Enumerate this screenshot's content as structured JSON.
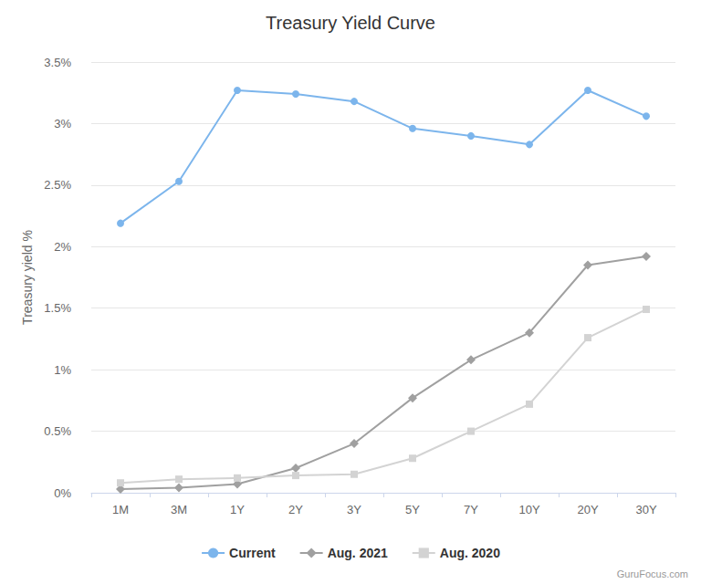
{
  "chart_data": {
    "type": "line",
    "title": "Treasury Yield Curve",
    "y_label": "Treasury yield %",
    "categories": [
      "1M",
      "3M",
      "1Y",
      "2Y",
      "3Y",
      "5Y",
      "7Y",
      "10Y",
      "20Y",
      "30Y"
    ],
    "series": [
      {
        "name": "Current",
        "color": "#7cb5ec",
        "marker": "circle",
        "line_style": "solid",
        "values": [
          2.19,
          2.53,
          3.27,
          3.24,
          3.18,
          2.96,
          2.9,
          2.83,
          3.27,
          3.06
        ]
      },
      {
        "name": "Aug. 2021",
        "color": "#a0a0a0",
        "marker": "diamond",
        "line_style": "solid",
        "values": [
          0.03,
          0.04,
          0.07,
          0.2,
          0.4,
          0.77,
          1.08,
          1.3,
          1.85,
          1.92
        ]
      },
      {
        "name": "Aug. 2020",
        "color": "#d3d3d3",
        "marker": "square",
        "line_style": "solid",
        "values": [
          0.08,
          0.11,
          0.12,
          0.14,
          0.15,
          0.28,
          0.5,
          0.72,
          1.26,
          1.49
        ]
      }
    ],
    "ylim": [
      0,
      3.5
    ],
    "yticks": [
      {
        "value": 0,
        "label": "0%"
      },
      {
        "value": 0.5,
        "label": "0.5%"
      },
      {
        "value": 1,
        "label": "1%"
      },
      {
        "value": 1.5,
        "label": "1.5%"
      },
      {
        "value": 2,
        "label": "2%"
      },
      {
        "value": 2.5,
        "label": "2.5%"
      },
      {
        "value": 3,
        "label": "3%"
      },
      {
        "value": 3.5,
        "label": "3.5%"
      }
    ],
    "grid": true,
    "legend": "bottom",
    "annotations": [
      "GuruFocus.com"
    ]
  }
}
